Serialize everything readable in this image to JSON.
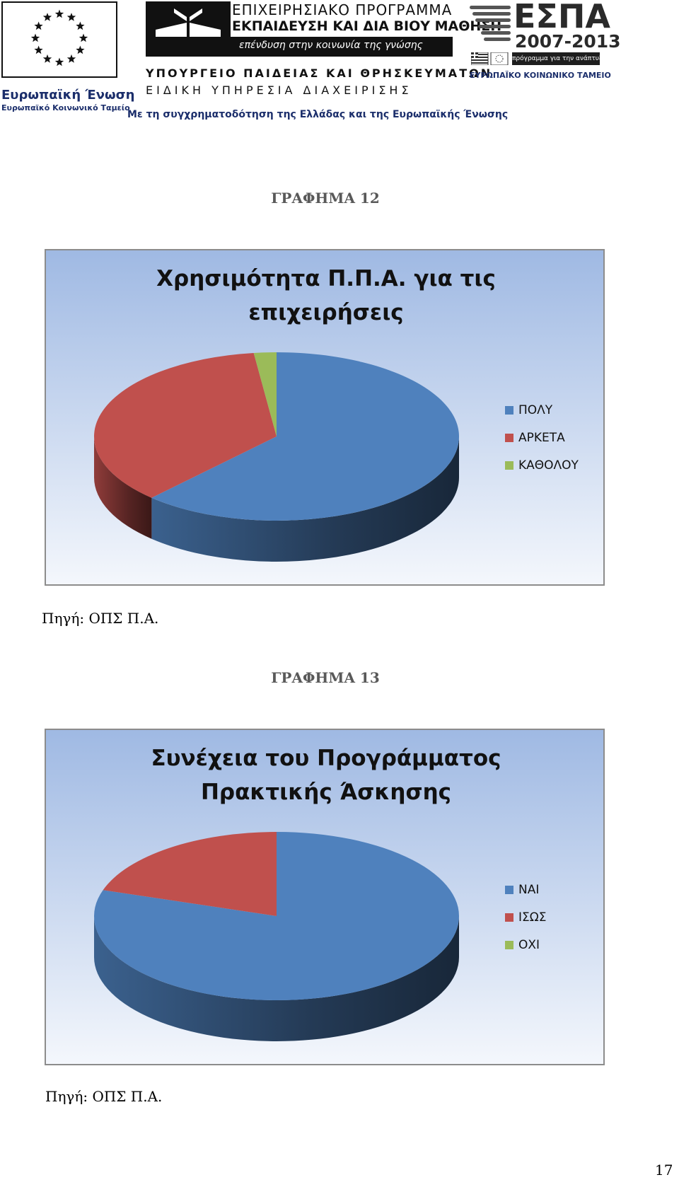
{
  "header": {
    "eu_name": "Ευρωπαϊκή Ένωση",
    "eu_fund": "Ευρωπαϊκό Κοινωνικό Ταμείο",
    "program_line1": "ΕΠΙΧΕΙΡΗΣΙΑΚΟ ΠΡΟΓΡΑΜΜΑ",
    "program_line2": "ΕΚΠΑΙΔΕΥΣΗ ΚΑΙ ΔΙΑ ΒΙΟΥ ΜΑΘΗΣΗ",
    "program_line3": "επένδυση στην κοινωνία της γνώσης",
    "ministry": "ΥΠΟΥΡΓΕΙΟ ΠΑΙΔΕΙΑΣ ΚΑΙ ΘΡΗΣΚΕΥΜΑΤΩΝ",
    "service": "ΕΙΔΙΚΗ ΥΠΗΡΕΣΙΑ ΔΙΑΧΕΙΡΙΣΗΣ",
    "cofunding": "Με τη συγχρηματοδότηση της Ελλάδας και της Ευρωπαϊκής Ένωσης",
    "espa": "ΕΣΠΑ",
    "espa_years": "2007-2013",
    "espa_tagline": "πρόγραμμα για την ανάπτυξη",
    "espa_fund": "ΕΥΡΩΠΑΪΚΟ ΚΟΙΝΩΝΙΚΟ ΤΑΜΕΙΟ"
  },
  "graph1": {
    "caption": "ΓΡΑΦΗΜΑ 12",
    "source": "Πηγή: ΟΠΣ  Π.Α."
  },
  "graph2": {
    "caption": "ΓΡΑΦΗΜΑ 13",
    "source": "Πηγή: ΟΠΣ  Π.Α."
  },
  "page_number": "17",
  "chart_data": [
    {
      "type": "pie",
      "style": "3d",
      "title": "Χρησιμότητα Π.Π.Α. για τις επιχειρήσεις",
      "title_lines": [
        "Χρησιμότητα Π.Π.Α. για τις",
        "επιχειρήσεις"
      ],
      "categories": [
        "ΠΟΛΥ",
        "ΑΡΚΕΤΑ",
        "ΚΑΘΟΛΟΥ"
      ],
      "values": [
        62,
        36,
        2
      ],
      "colors": [
        "#4F81BD",
        "#C0504D",
        "#9BBB59"
      ],
      "legend": "right"
    },
    {
      "type": "pie",
      "style": "3d",
      "title": "Συνέχεια του Προγράμματος Πρακτικής Άσκησης",
      "title_lines": [
        "Συνέχεια του Προγράμματος",
        "Πρακτικής Άσκησης"
      ],
      "categories": [
        "ΝΑΙ",
        "ΙΣΩΣ",
        "ΟΧΙ"
      ],
      "values": [
        80,
        20,
        0
      ],
      "colors": [
        "#4F81BD",
        "#C0504D",
        "#9BBB59"
      ],
      "legend": "right"
    }
  ]
}
